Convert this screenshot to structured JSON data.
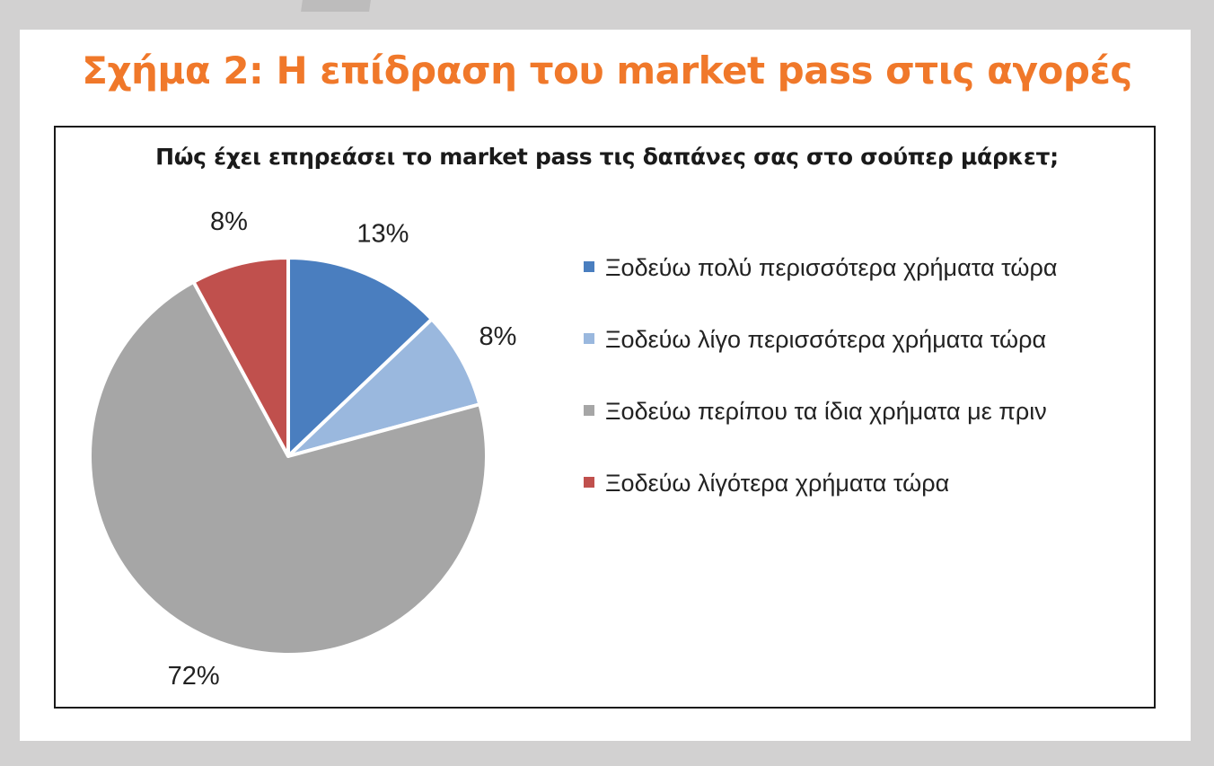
{
  "figure_title": "Σχήμα 2: Η επίδραση του market pass στις αγορές",
  "chart_data": {
    "type": "pie",
    "title": "Πώς έχει επηρεάσει το market pass τις δαπάνες σας στο σούπερ μάρκετ;",
    "legend_position": "right",
    "slices": [
      {
        "label": "Ξοδεύω πολύ περισσότερα χρήματα τώρα",
        "value": 13,
        "value_label": "13%",
        "color": "#4a7ebf"
      },
      {
        "label": "Ξοδεύω λίγο περισσότερα χρήματα τώρα",
        "value": 8,
        "value_label": "8%",
        "color": "#9ab8de"
      },
      {
        "label": "Ξοδεύω περίπου τα ίδια χρήματα με πριν",
        "value": 72,
        "value_label": "72%",
        "color": "#a6a6a6"
      },
      {
        "label": "Ξοδεύω λίγότερα χρήματα τώρα",
        "value": 8,
        "value_label": "8%",
        "color": "#c0504d"
      }
    ]
  }
}
